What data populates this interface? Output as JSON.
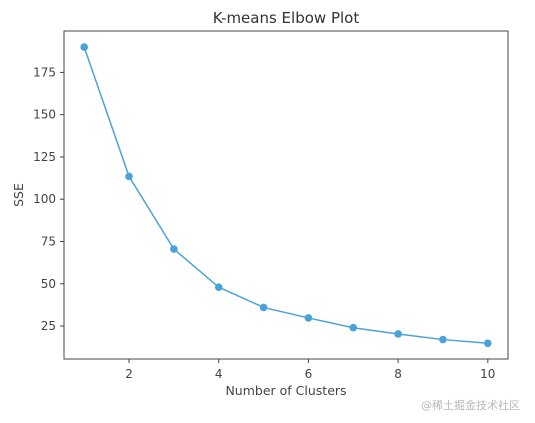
{
  "chart_data": {
    "type": "line",
    "title": "K-means Elbow Plot",
    "xlabel": "Number of Clusters",
    "ylabel": "SSE",
    "x": [
      1,
      2,
      3,
      4,
      5,
      6,
      7,
      8,
      9,
      10
    ],
    "series": [
      {
        "values": [
          190,
          113.5,
          70.5,
          48,
          36,
          29.8,
          24,
          20.3,
          17,
          14.8
        ]
      }
    ],
    "xlim": [
      0.55,
      10.45
    ],
    "ylim": [
      5.5,
      199.5
    ],
    "xticks": [
      2,
      4,
      6,
      8,
      10
    ],
    "yticks": [
      25,
      50,
      75,
      100,
      125,
      150,
      175
    ],
    "grid": false,
    "markers": true,
    "color": "#4aa3d8"
  },
  "watermark": "@稀土掘金技术社区"
}
